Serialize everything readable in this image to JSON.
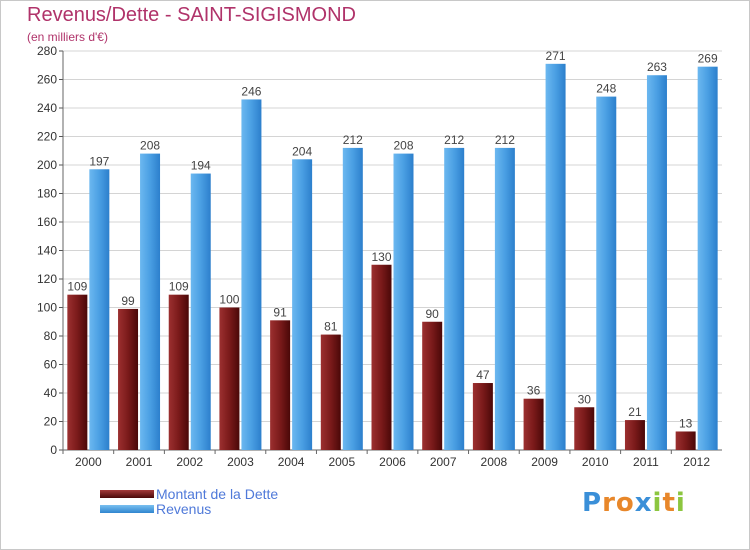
{
  "chart_data": {
    "type": "bar",
    "title": "Revenus/Dette - SAINT-SIGISMOND",
    "subtitle": "(en milliers d'€)",
    "categories": [
      "2000",
      "2001",
      "2002",
      "2003",
      "2004",
      "2005",
      "2006",
      "2007",
      "2008",
      "2009",
      "2010",
      "2011",
      "2012"
    ],
    "series": [
      {
        "name": "Montant de la Dette",
        "color": "#7a1a1a",
        "values": [
          109,
          99,
          109,
          100,
          91,
          81,
          130,
          90,
          47,
          36,
          30,
          21,
          13
        ]
      },
      {
        "name": "Revenus",
        "color": "#4a9fe3",
        "values": [
          197,
          208,
          194,
          246,
          204,
          212,
          208,
          212,
          212,
          271,
          248,
          263,
          269
        ]
      }
    ],
    "ylim": [
      0,
      280
    ],
    "ytick_step": 20,
    "grid": true,
    "xlabel": "",
    "ylabel": ""
  },
  "legend": {
    "items": [
      {
        "label": "Montant de la Dette",
        "color": "#7a1a1a"
      },
      {
        "label": "Revenus",
        "color": "#4a9fe3"
      }
    ]
  },
  "logo": {
    "letters": [
      "P",
      "r",
      "o",
      "x",
      "i",
      "t",
      "i"
    ],
    "colors": [
      "#3a8fd8",
      "#e8872a",
      "#e8872a",
      "#3a8fd8",
      "#8cc63f",
      "#e8872a",
      "#8cc63f"
    ]
  }
}
